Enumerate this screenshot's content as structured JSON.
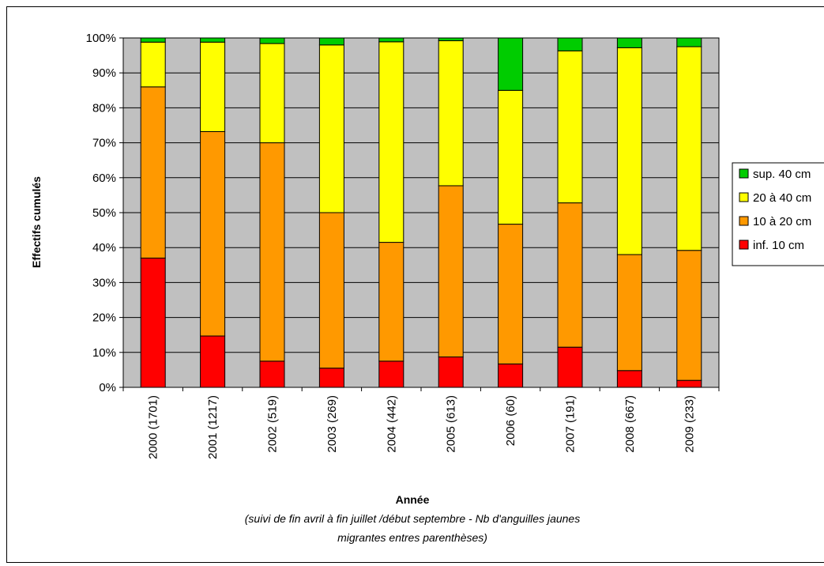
{
  "chart_data": {
    "type": "bar",
    "stacked": true,
    "percent": true,
    "categories": [
      "2000 (1701)",
      "2001 (1217)",
      "2002 (519)",
      "2003 (269)",
      "2004 (442)",
      "2005 (613)",
      "2006 (60)",
      "2007 (191)",
      "2008 (667)",
      "2009 (233)"
    ],
    "series": [
      {
        "name": "inf. 10 cm",
        "color": "#ff0000",
        "values": [
          37,
          14.7,
          7.5,
          5.5,
          7.5,
          8.7,
          6.7,
          11.5,
          4.8,
          2
        ]
      },
      {
        "name": "10 à 20 cm",
        "color": "#ff9900",
        "values": [
          49,
          58.5,
          62.5,
          44.5,
          34,
          49,
          40,
          41.3,
          33.2,
          37.2
        ]
      },
      {
        "name": "20 à 40 cm",
        "color": "#ffff00",
        "values": [
          12.8,
          25.6,
          28.4,
          48,
          57.4,
          41.5,
          38.3,
          43.5,
          59.2,
          58.3
        ]
      },
      {
        "name": "sup. 40 cm",
        "color": "#00cc00",
        "values": [
          1.2,
          1.2,
          1.6,
          2,
          1.1,
          0.8,
          15,
          3.7,
          2.8,
          2.5
        ]
      }
    ],
    "ylim": [
      0,
      100
    ],
    "yticks": [
      "0%",
      "10%",
      "20%",
      "30%",
      "40%",
      "50%",
      "60%",
      "70%",
      "80%",
      "90%",
      "100%"
    ],
    "ylabel": "Effectifs cumulés",
    "xlabel": "Année",
    "note_line1": "(suivi de fin avril à fin juillet /début septembre - Nb d'anguilles jaunes",
    "note_line2": "migrantes entres parenthèses)",
    "legend_position": "right",
    "plot_background": "#c0c0c0",
    "grid": true
  }
}
